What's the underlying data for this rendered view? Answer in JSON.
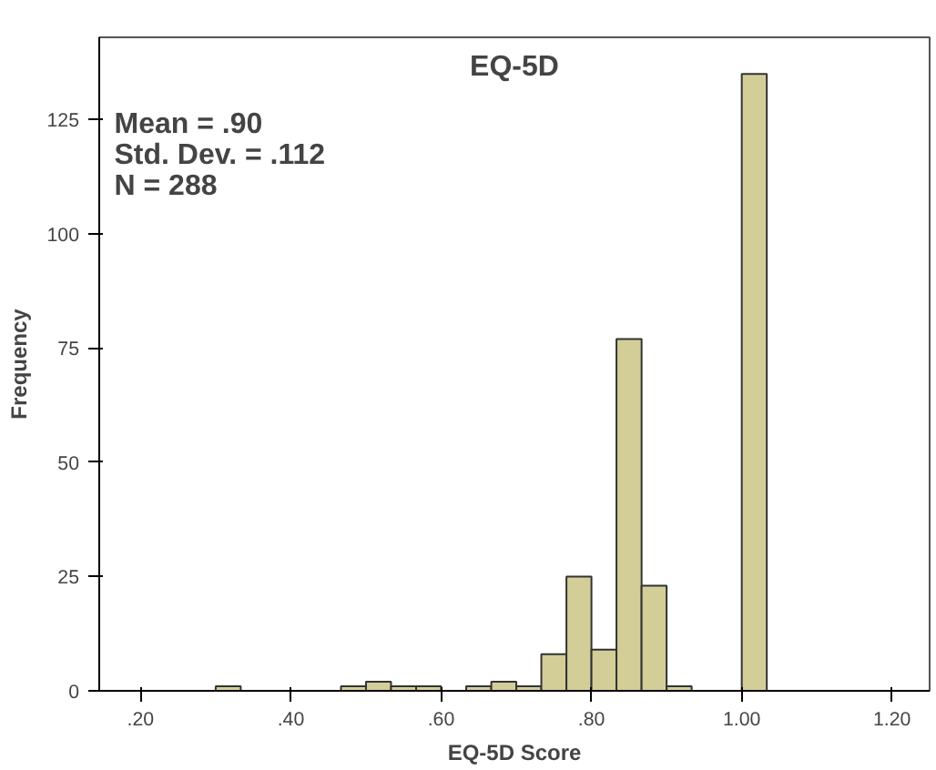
{
  "chart_data": {
    "type": "histogram",
    "title": "EQ-5D",
    "xlabel": "EQ-5D Score",
    "ylabel": "Frequency",
    "annotations": [
      "Mean = .90\nStd. Dev. = .112\nN = 288"
    ],
    "bins": [
      0.3,
      0.3333,
      0.3667,
      0.4,
      0.4333,
      0.4667,
      0.5,
      0.5333,
      0.5667,
      0.6,
      0.6333,
      0.6667,
      0.7,
      0.7333,
      0.7667,
      0.8,
      0.8333,
      0.8667,
      0.9,
      0.9333,
      0.9667,
      1.0,
      1.0333
    ],
    "values": [
      1,
      0,
      0,
      0,
      0,
      1,
      2,
      1,
      1,
      0,
      1,
      2,
      1,
      8,
      25,
      9,
      77,
      23,
      1,
      0,
      0,
      135
    ],
    "color": "#d3ce97",
    "xlim": [
      0.145,
      1.25
    ],
    "ylim": [
      0,
      143
    ],
    "xticks": [
      {
        "value": 0.2,
        "label": ".20"
      },
      {
        "value": 0.4,
        "label": ".40"
      },
      {
        "value": 0.6,
        "label": ".60"
      },
      {
        "value": 0.8,
        "label": ".80"
      },
      {
        "value": 1.0,
        "label": "1.00"
      },
      {
        "value": 1.2,
        "label": "1.20"
      }
    ],
    "yticks": [
      0,
      25,
      50,
      75,
      100,
      125
    ],
    "grid": false
  }
}
